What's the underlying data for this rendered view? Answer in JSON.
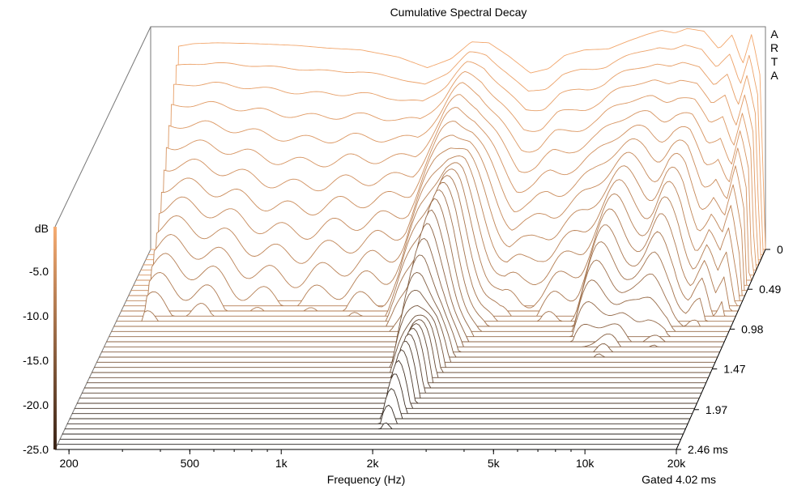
{
  "chart_data": {
    "type": "waterfall",
    "title": "Cumulative Spectral Decay",
    "brand": [
      "A",
      "R",
      "T",
      "A"
    ],
    "xlabel": "Frequency (Hz)",
    "x_scale": "log",
    "xlim": [
      180,
      20000
    ],
    "x_ticks": [
      {
        "value": 200,
        "label": "200"
      },
      {
        "value": 500,
        "label": "500"
      },
      {
        "value": 1000,
        "label": "1k"
      },
      {
        "value": 2000,
        "label": "2k"
      },
      {
        "value": 5000,
        "label": "5k"
      },
      {
        "value": 10000,
        "label": "10k"
      },
      {
        "value": 20000,
        "label": "20k"
      }
    ],
    "zlabel": "dB",
    "zlim": [
      -25,
      0
    ],
    "z_ticks": [
      {
        "value": -5,
        "label": "-5.0"
      },
      {
        "value": -10,
        "label": "-10.0"
      },
      {
        "value": -15,
        "label": "-15.0"
      },
      {
        "value": -20,
        "label": "-20.0"
      },
      {
        "value": -25,
        "label": "-25.0"
      }
    ],
    "time_unit": "ms",
    "tlim": [
      0,
      2.46
    ],
    "t_ticks": [
      {
        "value": 0,
        "label": "0"
      },
      {
        "value": 0.49,
        "label": "0.49"
      },
      {
        "value": 0.98,
        "label": "0.98"
      },
      {
        "value": 1.47,
        "label": "1.47"
      },
      {
        "value": 1.97,
        "label": "1.97"
      },
      {
        "value": 2.46,
        "label": "2.46 ms"
      }
    ],
    "slice_count": 40,
    "gating_note": "Gated 4.02 ms",
    "colors": {
      "near": "#1a1a1a",
      "far": "#f2a66b",
      "bar_top": "#f6ac72",
      "bar_bottom": "#3a2417"
    },
    "initial_response": [
      {
        "f": 200,
        "db": -25
      },
      {
        "f": 218,
        "db": -25
      },
      {
        "f": 222,
        "db": -2.2
      },
      {
        "f": 250,
        "db": -1.9
      },
      {
        "f": 300,
        "db": -1.8
      },
      {
        "f": 400,
        "db": -1.9
      },
      {
        "f": 550,
        "db": -2.1
      },
      {
        "f": 700,
        "db": -2.4
      },
      {
        "f": 900,
        "db": -2.6
      },
      {
        "f": 1200,
        "db": -3.4
      },
      {
        "f": 1500,
        "db": -4.6
      },
      {
        "f": 1800,
        "db": -3.6
      },
      {
        "f": 2100,
        "db": -1.7
      },
      {
        "f": 2400,
        "db": -1.8
      },
      {
        "f": 2800,
        "db": -3.3
      },
      {
        "f": 3300,
        "db": -5.2
      },
      {
        "f": 3800,
        "db": -4.7
      },
      {
        "f": 4300,
        "db": -3.2
      },
      {
        "f": 5000,
        "db": -2.6
      },
      {
        "f": 6000,
        "db": -2.5
      },
      {
        "f": 7000,
        "db": -1.6
      },
      {
        "f": 8000,
        "db": -0.9
      },
      {
        "f": 9000,
        "db": -0.4
      },
      {
        "f": 10000,
        "db": -0.7
      },
      {
        "f": 11000,
        "db": -0.2
      },
      {
        "f": 12500,
        "db": -0.5
      },
      {
        "f": 14000,
        "db": -2.5
      },
      {
        "f": 15500,
        "db": -0.9
      },
      {
        "f": 16800,
        "db": -4.2
      },
      {
        "f": 18000,
        "db": -0.8
      },
      {
        "f": 19200,
        "db": -5.5
      },
      {
        "f": 20000,
        "db": -25
      }
    ]
  }
}
